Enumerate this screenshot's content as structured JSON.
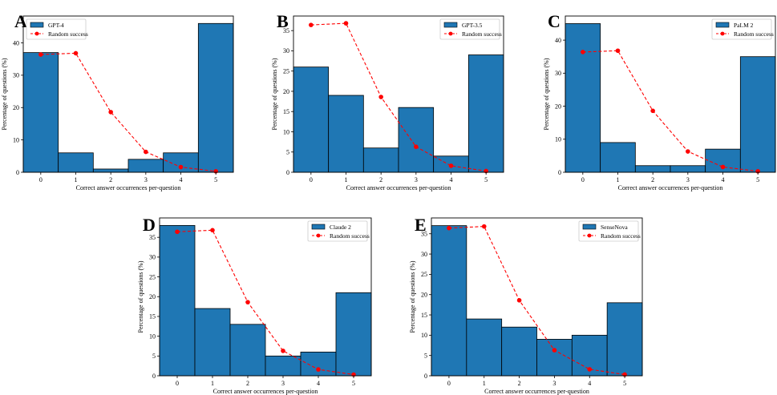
{
  "figure": {
    "panels": [
      "A",
      "B",
      "C",
      "D",
      "E"
    ]
  },
  "chart_data": [
    {
      "panel": "A",
      "type": "bar",
      "categories": [
        "0",
        "1",
        "2",
        "3",
        "4",
        "5"
      ],
      "series": [
        {
          "name": "GPT-4",
          "kind": "bar",
          "color": "#1f77b4",
          "values": [
            37,
            6,
            1,
            4,
            6,
            46
          ]
        },
        {
          "name": "Random success",
          "kind": "line",
          "color": "#ff0000",
          "style": "dashed",
          "values": [
            36.4,
            36.8,
            18.6,
            6.3,
            1.6,
            0.3
          ]
        }
      ],
      "xlabel": "Correct answer occurrences per-question",
      "ylabel": "Percentage of questions (%)",
      "ylim": [
        0,
        48.3
      ],
      "yticks": [
        0,
        10,
        20,
        30,
        40
      ],
      "legend": "top-left"
    },
    {
      "panel": "B",
      "type": "bar",
      "categories": [
        "0",
        "1",
        "2",
        "3",
        "4",
        "5"
      ],
      "series": [
        {
          "name": "GPT-3.5",
          "kind": "bar",
          "color": "#1f77b4",
          "values": [
            26,
            19,
            6,
            16,
            4,
            29
          ]
        },
        {
          "name": "Random success",
          "kind": "line",
          "color": "#ff0000",
          "style": "dashed",
          "values": [
            36.4,
            36.8,
            18.6,
            6.3,
            1.6,
            0.3
          ]
        }
      ],
      "xlabel": "Correct answer occurrences per-question",
      "ylabel": "Percentage of questions (%)",
      "ylim": [
        0,
        38.6
      ],
      "yticks": [
        0,
        5,
        10,
        15,
        20,
        25,
        30,
        35
      ],
      "legend": "top-right"
    },
    {
      "panel": "C",
      "type": "bar",
      "categories": [
        "0",
        "1",
        "2",
        "3",
        "4",
        "5"
      ],
      "series": [
        {
          "name": "PaLM 2",
          "kind": "bar",
          "color": "#1f77b4",
          "values": [
            45,
            9,
            2,
            2,
            7,
            35
          ]
        },
        {
          "name": "Random success",
          "kind": "line",
          "color": "#ff0000",
          "style": "dashed",
          "values": [
            36.4,
            36.8,
            18.6,
            6.3,
            1.6,
            0.3
          ]
        }
      ],
      "xlabel": "Correct answer occurrences per-question",
      "ylabel": "Percentage of questions (%)",
      "ylim": [
        0,
        47.3
      ],
      "yticks": [
        0,
        10,
        20,
        30,
        40
      ],
      "legend": "top-right"
    },
    {
      "panel": "D",
      "type": "bar",
      "categories": [
        "0",
        "1",
        "2",
        "3",
        "4",
        "5"
      ],
      "series": [
        {
          "name": "Claude 2",
          "kind": "bar",
          "color": "#1f77b4",
          "values": [
            38,
            17,
            13,
            5,
            6,
            21
          ]
        },
        {
          "name": "Random success",
          "kind": "line",
          "color": "#ff0000",
          "style": "dashed",
          "values": [
            36.4,
            36.8,
            18.6,
            6.3,
            1.6,
            0.3
          ]
        }
      ],
      "xlabel": "Correct answer occurrences per-question",
      "ylabel": "Percentage of questions (%)",
      "ylim": [
        0,
        39.9
      ],
      "yticks": [
        0,
        5,
        10,
        15,
        20,
        25,
        30,
        35
      ],
      "legend": "top-right"
    },
    {
      "panel": "E",
      "type": "bar",
      "categories": [
        "0",
        "1",
        "2",
        "3",
        "4",
        "5"
      ],
      "series": [
        {
          "name": "SenseNova",
          "kind": "bar",
          "color": "#1f77b4",
          "values": [
            37,
            14,
            12,
            9,
            10,
            18
          ]
        },
        {
          "name": "Random success",
          "kind": "line",
          "color": "#ff0000",
          "style": "dashed",
          "values": [
            36.4,
            36.8,
            18.6,
            6.3,
            1.6,
            0.3
          ]
        }
      ],
      "xlabel": "Correct answer occurrences per-question",
      "ylabel": "Percentage of questions (%)",
      "ylim": [
        0,
        38.9
      ],
      "yticks": [
        0,
        5,
        10,
        15,
        20,
        25,
        30,
        35
      ],
      "legend": "top-right"
    }
  ]
}
